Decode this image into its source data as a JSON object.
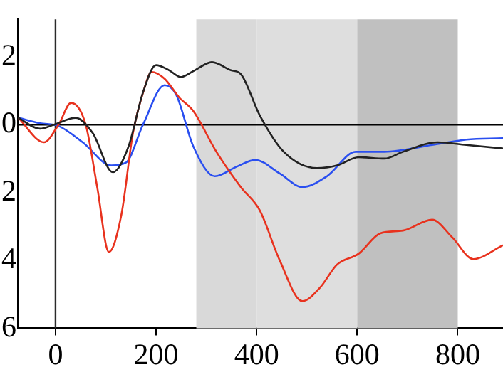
{
  "chart_data": {
    "type": "line",
    "xlim": [
      -75,
      890
    ],
    "xticks": [
      0,
      200,
      400,
      600,
      800
    ],
    "ylim": [
      -6,
      3.1
    ],
    "yticks": [
      {
        "value": 2,
        "label": "2"
      },
      0,
      {
        "value": -2,
        "label": "2"
      },
      {
        "value": -4,
        "label": "4"
      },
      {
        "value": -6,
        "label": "6"
      }
    ],
    "grid": false,
    "legend": false,
    "marker": "none",
    "line_style": "solid",
    "bands": [
      {
        "axis": "x",
        "from": 280,
        "to": 400,
        "color": "#d9d9d9"
      },
      {
        "axis": "x",
        "from": 400,
        "to": 600,
        "color": "#dedede"
      },
      {
        "axis": "x",
        "from": 600,
        "to": 800,
        "color": "#c0c0c0"
      }
    ],
    "ref_lines": [
      {
        "axis": "x",
        "value": 0,
        "color": "#2a2a2a"
      },
      {
        "axis": "y",
        "value": 0,
        "color": "#000000"
      }
    ],
    "series": [
      {
        "color": "#222222",
        "x": [
          -74,
          -31,
          -3,
          40,
          74,
          114,
          145,
          174,
          200,
          226,
          249,
          277,
          311,
          349,
          369,
          406,
          454,
          520,
          560,
          603,
          654,
          691,
          760,
          817,
          889
        ],
        "values": [
          0.2,
          -0.12,
          0,
          0.2,
          -0.25,
          -1.4,
          -0.65,
          0.95,
          1.75,
          1.6,
          1.4,
          1.6,
          1.84,
          1.6,
          1.48,
          0.28,
          -0.8,
          -1.28,
          -1.2,
          -0.96,
          -1,
          -0.8,
          -0.52,
          -0.6,
          -0.7
        ]
      },
      {
        "color": "#e8321e",
        "x": [
          -74,
          -23,
          6,
          31,
          60,
          83,
          106,
          131,
          154,
          177,
          191,
          217,
          246,
          274,
          320,
          369,
          406,
          446,
          491,
          526,
          560,
          603,
          646,
          691,
          749,
          789,
          831,
          889
        ],
        "values": [
          0.2,
          -0.52,
          0,
          0.64,
          0,
          -1.85,
          -3.75,
          -2.65,
          -0.25,
          1.08,
          1.55,
          1.35,
          0.8,
          0.4,
          -0.8,
          -1.85,
          -2.52,
          -4,
          -5.2,
          -4.8,
          -4.12,
          -3.8,
          -3.2,
          -3.12,
          -2.8,
          -3.32,
          -3.96,
          -3.56
        ]
      },
      {
        "color": "#2a4ff0",
        "x": [
          -74,
          -31,
          6,
          54,
          111,
          140,
          174,
          217,
          240,
          274,
          317,
          360,
          397,
          446,
          491,
          540,
          597,
          654,
          749,
          817,
          889
        ],
        "values": [
          0.2,
          0.04,
          -0.04,
          -0.52,
          -1.2,
          -1.12,
          0,
          1.16,
          0.88,
          -0.64,
          -1.52,
          -1.24,
          -1.04,
          -1.44,
          -1.84,
          -1.52,
          -0.8,
          -0.8,
          -0.6,
          -0.44,
          -0.4
        ]
      }
    ]
  }
}
